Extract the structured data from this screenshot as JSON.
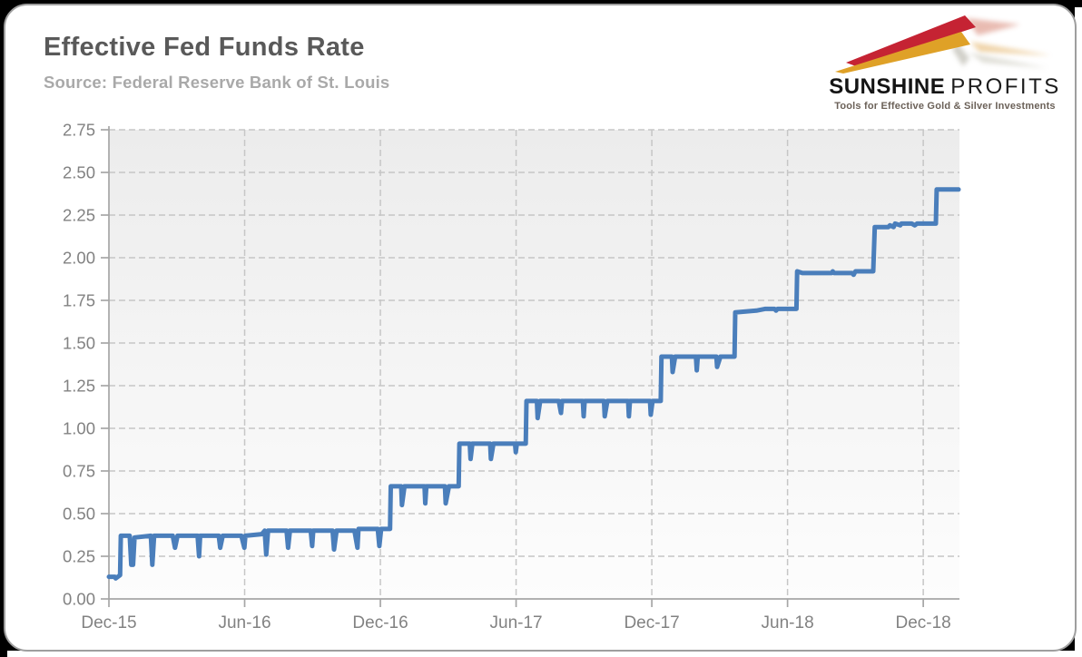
{
  "page": {
    "title": "Effective Fed Funds Rate",
    "source": "Source: Federal Reserve Bank of St. Louis"
  },
  "logo": {
    "brand_primary": "SUNSHINE",
    "brand_secondary": "PROFITS",
    "tagline": "Tools for Effective Gold & Silver Investments",
    "arrow_red": "#c52333",
    "arrow_gold": "#dfa127"
  },
  "chart_data": {
    "type": "line",
    "title": "Effective Fed Funds Rate",
    "xlabel": "",
    "ylabel": "",
    "legend": "none",
    "grid": "dashed",
    "plot_bg_top": "#ececec",
    "plot_bg_bottom": "#fdfdfd",
    "axis_color": "#a6a6a6",
    "grid_color": "#c6c6c6",
    "label_color": "#828282",
    "ylim": [
      0,
      2.75
    ],
    "y_ticks": [
      "0.00",
      "0.25",
      "0.50",
      "0.75",
      "1.00",
      "1.25",
      "1.50",
      "1.75",
      "2.00",
      "2.25",
      "2.50",
      "2.75"
    ],
    "x_ticks": [
      {
        "label": "Dec-15",
        "month": 0
      },
      {
        "label": "Jun-16",
        "month": 6
      },
      {
        "label": "Dec-16",
        "month": 12
      },
      {
        "label": "Jun-17",
        "month": 18
      },
      {
        "label": "Dec-17",
        "month": 24
      },
      {
        "label": "Jun-18",
        "month": 30
      },
      {
        "label": "Dec-18",
        "month": 36
      }
    ],
    "x_domain_start": "2015-12-01",
    "x_domain_months": 37.6,
    "series": [
      {
        "name": "Effective Fed Funds Rate (%)",
        "color": "#4a7ebb",
        "line_width": 5,
        "points": [
          [
            "2015-12-01",
            0.13
          ],
          [
            "2015-12-09",
            0.13
          ],
          [
            "2015-12-10",
            0.12
          ],
          [
            "2015-12-13",
            0.13
          ],
          [
            "2015-12-16",
            0.14
          ],
          [
            "2015-12-17",
            0.37
          ],
          [
            "2015-12-29",
            0.37
          ],
          [
            "2015-12-31",
            0.2
          ],
          [
            "2016-01-03",
            0.2
          ],
          [
            "2016-01-05",
            0.36
          ],
          [
            "2016-01-27",
            0.37
          ],
          [
            "2016-01-29",
            0.2
          ],
          [
            "2016-02-01",
            0.37
          ],
          [
            "2016-02-26",
            0.37
          ],
          [
            "2016-02-29",
            0.3
          ],
          [
            "2016-03-02",
            0.37
          ],
          [
            "2016-03-29",
            0.37
          ],
          [
            "2016-03-31",
            0.25
          ],
          [
            "2016-04-02",
            0.37
          ],
          [
            "2016-04-27",
            0.37
          ],
          [
            "2016-04-29",
            0.3
          ],
          [
            "2016-05-02",
            0.37
          ],
          [
            "2016-05-27",
            0.37
          ],
          [
            "2016-05-31",
            0.3
          ],
          [
            "2016-06-02",
            0.37
          ],
          [
            "2016-06-24",
            0.38
          ],
          [
            "2016-06-28",
            0.4
          ],
          [
            "2016-06-30",
            0.26
          ],
          [
            "2016-07-02",
            0.4
          ],
          [
            "2016-07-27",
            0.4
          ],
          [
            "2016-07-29",
            0.3
          ],
          [
            "2016-08-01",
            0.4
          ],
          [
            "2016-08-29",
            0.4
          ],
          [
            "2016-08-31",
            0.31
          ],
          [
            "2016-09-02",
            0.4
          ],
          [
            "2016-09-28",
            0.4
          ],
          [
            "2016-09-30",
            0.29
          ],
          [
            "2016-10-03",
            0.4
          ],
          [
            "2016-10-27",
            0.4
          ],
          [
            "2016-10-31",
            0.3
          ],
          [
            "2016-11-02",
            0.41
          ],
          [
            "2016-11-28",
            0.41
          ],
          [
            "2016-11-30",
            0.31
          ],
          [
            "2016-12-02",
            0.41
          ],
          [
            "2016-12-14",
            0.41
          ],
          [
            "2016-12-15",
            0.66
          ],
          [
            "2016-12-29",
            0.66
          ],
          [
            "2016-12-30",
            0.55
          ],
          [
            "2017-01-03",
            0.66
          ],
          [
            "2017-01-30",
            0.66
          ],
          [
            "2017-01-31",
            0.56
          ],
          [
            "2017-02-02",
            0.66
          ],
          [
            "2017-02-27",
            0.66
          ],
          [
            "2017-02-28",
            0.56
          ],
          [
            "2017-03-02",
            0.66
          ],
          [
            "2017-03-15",
            0.66
          ],
          [
            "2017-03-16",
            0.91
          ],
          [
            "2017-03-30",
            0.91
          ],
          [
            "2017-03-31",
            0.82
          ],
          [
            "2017-04-03",
            0.91
          ],
          [
            "2017-04-27",
            0.91
          ],
          [
            "2017-04-28",
            0.82
          ],
          [
            "2017-05-01",
            0.91
          ],
          [
            "2017-05-30",
            0.91
          ],
          [
            "2017-05-31",
            0.86
          ],
          [
            "2017-06-02",
            0.91
          ],
          [
            "2017-06-14",
            0.91
          ],
          [
            "2017-06-15",
            1.16
          ],
          [
            "2017-06-29",
            1.16
          ],
          [
            "2017-06-30",
            1.06
          ],
          [
            "2017-07-03",
            1.16
          ],
          [
            "2017-07-28",
            1.16
          ],
          [
            "2017-07-31",
            1.09
          ],
          [
            "2017-08-02",
            1.16
          ],
          [
            "2017-08-30",
            1.16
          ],
          [
            "2017-08-31",
            1.07
          ],
          [
            "2017-09-02",
            1.16
          ],
          [
            "2017-09-28",
            1.16
          ],
          [
            "2017-09-29",
            1.07
          ],
          [
            "2017-10-02",
            1.16
          ],
          [
            "2017-10-30",
            1.16
          ],
          [
            "2017-10-31",
            1.07
          ],
          [
            "2017-11-02",
            1.16
          ],
          [
            "2017-11-29",
            1.16
          ],
          [
            "2017-11-30",
            1.08
          ],
          [
            "2017-12-02",
            1.16
          ],
          [
            "2017-12-13",
            1.16
          ],
          [
            "2017-12-14",
            1.42
          ],
          [
            "2017-12-28",
            1.42
          ],
          [
            "2017-12-29",
            1.33
          ],
          [
            "2018-01-02",
            1.42
          ],
          [
            "2018-01-30",
            1.42
          ],
          [
            "2018-01-31",
            1.34
          ],
          [
            "2018-02-02",
            1.42
          ],
          [
            "2018-02-27",
            1.42
          ],
          [
            "2018-02-28",
            1.36
          ],
          [
            "2018-03-02",
            1.42
          ],
          [
            "2018-03-21",
            1.42
          ],
          [
            "2018-03-22",
            1.68
          ],
          [
            "2018-04-20",
            1.69
          ],
          [
            "2018-05-01",
            1.7
          ],
          [
            "2018-05-14",
            1.7
          ],
          [
            "2018-05-16",
            1.69
          ],
          [
            "2018-05-18",
            1.7
          ],
          [
            "2018-06-13",
            1.7
          ],
          [
            "2018-06-14",
            1.92
          ],
          [
            "2018-06-21",
            1.91
          ],
          [
            "2018-07-30",
            1.91
          ],
          [
            "2018-08-01",
            1.92
          ],
          [
            "2018-08-03",
            1.91
          ],
          [
            "2018-08-27",
            1.91
          ],
          [
            "2018-08-29",
            1.9
          ],
          [
            "2018-09-01",
            1.92
          ],
          [
            "2018-09-25",
            1.92
          ],
          [
            "2018-09-27",
            2.18
          ],
          [
            "2018-10-15",
            2.18
          ],
          [
            "2018-10-17",
            2.19
          ],
          [
            "2018-10-22",
            2.18
          ],
          [
            "2018-10-24",
            2.2
          ],
          [
            "2018-10-31",
            2.19
          ],
          [
            "2018-11-02",
            2.2
          ],
          [
            "2018-11-16",
            2.2
          ],
          [
            "2018-11-20",
            2.19
          ],
          [
            "2018-11-23",
            2.2
          ],
          [
            "2018-12-18",
            2.2
          ],
          [
            "2018-12-19",
            2.4
          ],
          [
            "2019-01-18",
            2.4
          ]
        ]
      }
    ]
  }
}
